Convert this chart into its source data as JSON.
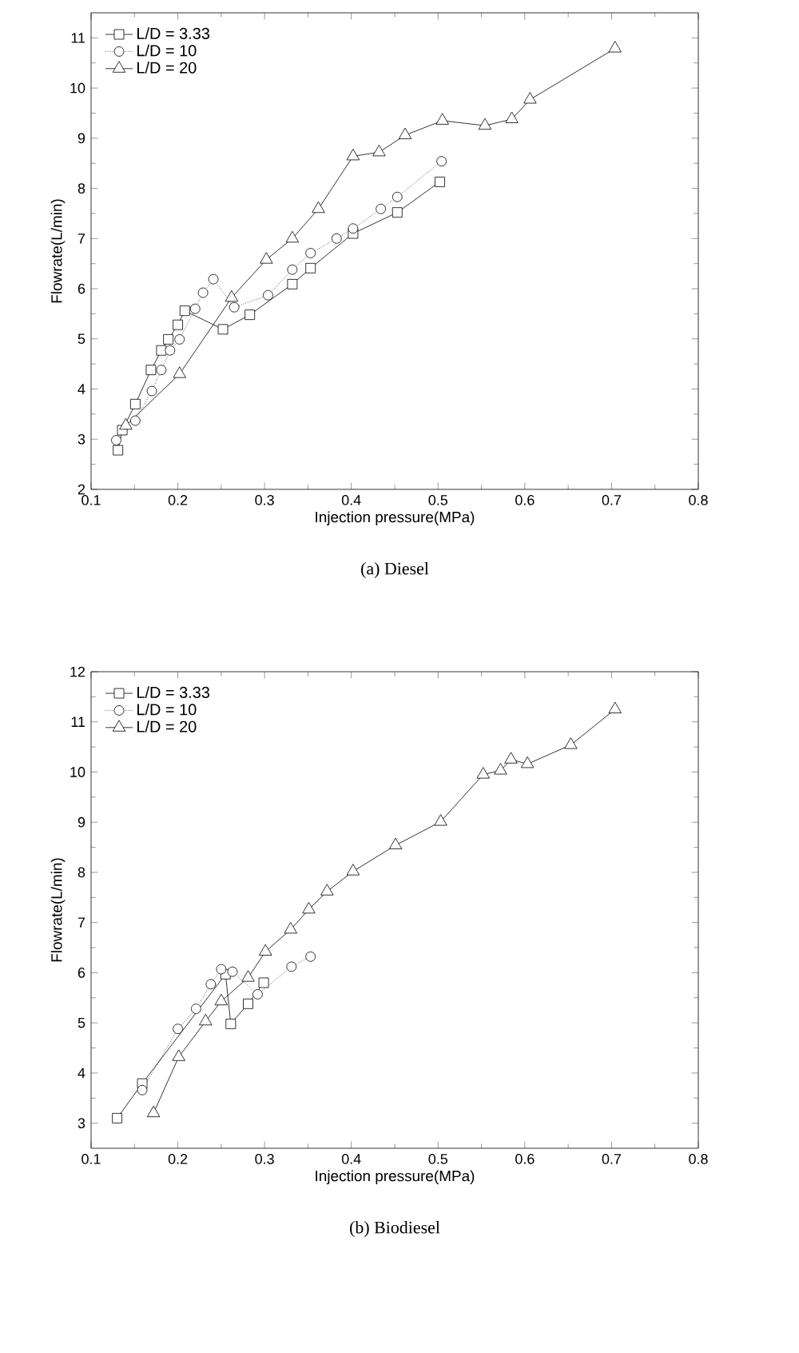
{
  "chart_data": [
    {
      "type": "line",
      "title": "(a)  Diesel",
      "xlabel": "Injection pressure(MPa)",
      "ylabel": "Flowrate(L/min)",
      "xlim": [
        0.1,
        0.8
      ],
      "ylim": [
        2,
        11.5
      ],
      "xticks": [
        0.1,
        0.2,
        0.3,
        0.4,
        0.5,
        0.6,
        0.7,
        0.8
      ],
      "yticks": [
        2,
        3,
        4,
        5,
        6,
        7,
        8,
        9,
        10,
        11
      ],
      "legend": "top left",
      "series": [
        {
          "name": "L/D = 3.33",
          "color": "#000000",
          "marker": "square",
          "line_style": "solid",
          "x": [
            0.131,
            0.136,
            0.151,
            0.169,
            0.181,
            0.189,
            0.2,
            0.208,
            0.252,
            0.283,
            0.332,
            0.353,
            0.402,
            0.453,
            0.502
          ],
          "values": [
            2.78,
            3.18,
            3.7,
            4.38,
            4.77,
            4.99,
            5.28,
            5.56,
            5.19,
            5.48,
            6.09,
            6.41,
            7.1,
            7.52,
            8.13
          ]
        },
        {
          "name": "L/D = 10",
          "color": "#000000",
          "marker": "circle",
          "line_style": "dotted",
          "x": [
            0.129,
            0.151,
            0.17,
            0.181,
            0.191,
            0.202,
            0.22,
            0.229,
            0.241,
            0.265,
            0.304,
            0.332,
            0.353,
            0.383,
            0.402,
            0.434,
            0.453,
            0.504
          ],
          "values": [
            2.98,
            3.37,
            3.96,
            4.38,
            4.77,
            4.99,
            5.6,
            5.92,
            6.19,
            5.63,
            5.87,
            6.38,
            6.71,
            7.0,
            7.2,
            7.59,
            7.83,
            8.54
          ]
        },
        {
          "name": "L/D = 20",
          "color": "#000000",
          "marker": "triangle",
          "line_style": "solid",
          "x": [
            0.14,
            0.202,
            0.262,
            0.302,
            0.332,
            0.362,
            0.402,
            0.432,
            0.462,
            0.505,
            0.554,
            0.585,
            0.606,
            0.704
          ],
          "values": [
            3.27,
            4.3,
            5.82,
            6.58,
            7.0,
            7.59,
            8.64,
            8.72,
            9.06,
            9.35,
            9.25,
            9.38,
            9.77,
            10.79
          ]
        }
      ]
    },
    {
      "type": "line",
      "title": "(b)  Biodiesel",
      "xlabel": "Injection pressure(MPa)",
      "ylabel": "Flowrate(L/min)",
      "xlim": [
        0.1,
        0.8
      ],
      "ylim": [
        2.5,
        12
      ],
      "xticks": [
        0.1,
        0.2,
        0.3,
        0.4,
        0.5,
        0.6,
        0.7,
        0.8
      ],
      "yticks": [
        3,
        4,
        5,
        6,
        7,
        8,
        9,
        10,
        11,
        12
      ],
      "legend": "top left",
      "series": [
        {
          "name": "L/D = 3.33",
          "color": "#000000",
          "marker": "square",
          "line_style": "solid",
          "x": [
            0.13,
            0.159,
            0.255,
            0.261,
            0.281,
            0.299
          ],
          "values": [
            3.1,
            3.79,
            5.97,
            4.98,
            5.38,
            5.8
          ]
        },
        {
          "name": "L/D = 10",
          "color": "#000000",
          "marker": "circle",
          "line_style": "dotted",
          "x": [
            0.159,
            0.2,
            0.221,
            0.238,
            0.25,
            0.263,
            0.292,
            0.331,
            0.353
          ],
          "values": [
            3.66,
            4.88,
            5.28,
            5.77,
            6.07,
            6.02,
            5.57,
            6.12,
            6.32
          ]
        },
        {
          "name": "L/D = 20",
          "color": "#000000",
          "marker": "triangle",
          "line_style": "solid",
          "x": [
            0.172,
            0.201,
            0.232,
            0.25,
            0.281,
            0.301,
            0.33,
            0.351,
            0.372,
            0.402,
            0.451,
            0.503,
            0.552,
            0.572,
            0.584,
            0.603,
            0.653,
            0.704
          ],
          "values": [
            3.2,
            4.32,
            5.03,
            5.43,
            5.9,
            6.42,
            6.86,
            7.26,
            7.62,
            8.02,
            8.54,
            9.01,
            9.95,
            10.03,
            10.25,
            10.16,
            10.54,
            11.25
          ]
        }
      ]
    }
  ]
}
